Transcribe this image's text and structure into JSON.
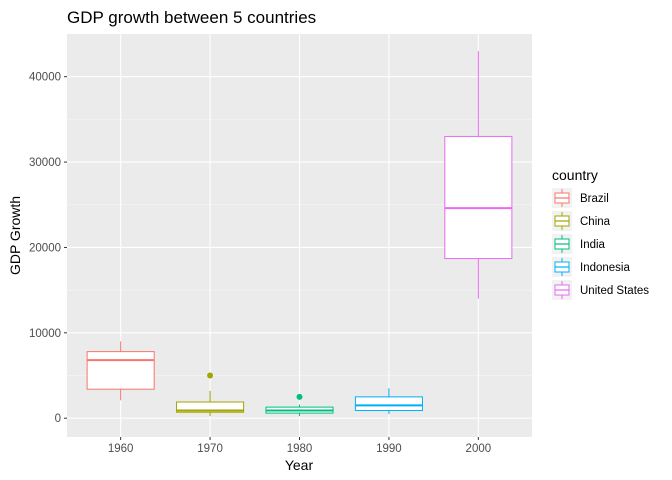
{
  "chart_data": {
    "type": "boxplot",
    "title": "GDP growth between 5 countries",
    "xlabel": "Year",
    "ylabel": "GDP Growth",
    "categories": [
      "1960",
      "1970",
      "1980",
      "1990",
      "2000"
    ],
    "ylim": [
      -2200,
      45000
    ],
    "yticks": [
      0,
      10000,
      20000,
      30000,
      40000
    ],
    "legend": {
      "title": "country",
      "position": "right"
    },
    "grid": true,
    "series": [
      {
        "name": "Brazil",
        "category": "1960",
        "color": "#F8766D",
        "min": 2100,
        "q1": 3400,
        "median": 6800,
        "q3": 7800,
        "max": 9000,
        "outliers": []
      },
      {
        "name": "China",
        "category": "1970",
        "color": "#A3A500",
        "min": 250,
        "q1": 700,
        "median": 900,
        "q3": 1900,
        "max": 3200,
        "outliers": [
          5000
        ]
      },
      {
        "name": "India",
        "category": "1980",
        "color": "#00BF7D",
        "min": 250,
        "q1": 600,
        "median": 900,
        "q3": 1300,
        "max": 1600,
        "outliers": [
          2500
        ]
      },
      {
        "name": "Indonesia",
        "category": "1990",
        "color": "#00B0F6",
        "min": 500,
        "q1": 900,
        "median": 1500,
        "q3": 2500,
        "max": 3500,
        "outliers": []
      },
      {
        "name": "United States",
        "category": "2000",
        "color": "#E76BF3",
        "min": 14000,
        "q1": 18700,
        "median": 24600,
        "q3": 33000,
        "max": 43000,
        "outliers": []
      }
    ]
  }
}
